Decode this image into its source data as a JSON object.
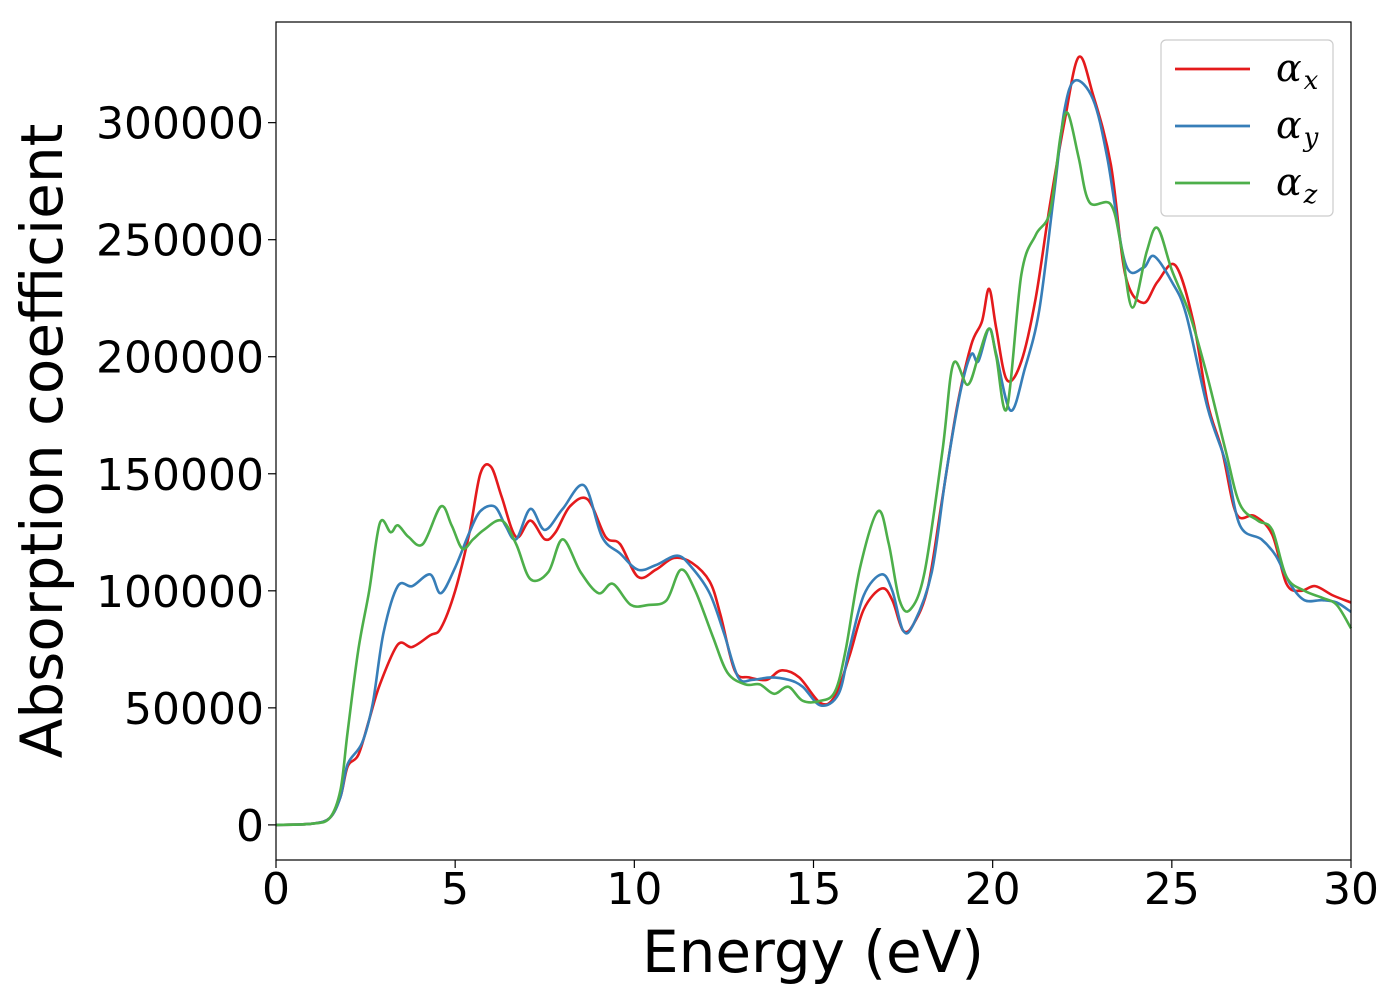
{
  "chart_data": {
    "type": "line",
    "title": "",
    "xlabel": "Energy (eV)",
    "ylabel": "Absorption coefficient",
    "xlim": [
      0,
      30
    ],
    "ylim": [
      -15000,
      343000
    ],
    "xticks": [
      "0",
      "5",
      "10",
      "15",
      "20",
      "25",
      "30"
    ],
    "yticks": [
      "0",
      "50000",
      "100000",
      "150000",
      "200000",
      "250000",
      "300000"
    ],
    "grid": false,
    "legend_position": "top-right",
    "series": [
      {
        "name": "α_x",
        "label_main": "α",
        "label_sub": "x",
        "color": "#e41a1c",
        "points": [
          [
            0,
            0
          ],
          [
            1,
            500
          ],
          [
            1.5,
            3000
          ],
          [
            1.8,
            12000
          ],
          [
            2,
            25000
          ],
          [
            2.3,
            30000
          ],
          [
            2.6,
            45000
          ],
          [
            2.9,
            60000
          ],
          [
            3.4,
            77000
          ],
          [
            3.8,
            76000
          ],
          [
            4.3,
            81000
          ],
          [
            4.6,
            84000
          ],
          [
            5,
            100000
          ],
          [
            5.4,
            125000
          ],
          [
            5.7,
            150000
          ],
          [
            6,
            153000
          ],
          [
            6.3,
            140000
          ],
          [
            6.7,
            123000
          ],
          [
            7.1,
            130000
          ],
          [
            7.5,
            122000
          ],
          [
            7.8,
            125000
          ],
          [
            8.2,
            136000
          ],
          [
            8.7,
            139000
          ],
          [
            9.2,
            123000
          ],
          [
            9.6,
            120000
          ],
          [
            10.1,
            106000
          ],
          [
            10.6,
            109000
          ],
          [
            11.1,
            114000
          ],
          [
            11.6,
            112000
          ],
          [
            12.1,
            104000
          ],
          [
            12.4,
            90000
          ],
          [
            12.8,
            66000
          ],
          [
            13.2,
            63000
          ],
          [
            13.7,
            62000
          ],
          [
            14.1,
            66000
          ],
          [
            14.6,
            63000
          ],
          [
            15.2,
            52000
          ],
          [
            15.6,
            55000
          ],
          [
            16,
            72000
          ],
          [
            16.4,
            92000
          ],
          [
            16.9,
            101000
          ],
          [
            17.2,
            96000
          ],
          [
            17.5,
            83000
          ],
          [
            17.8,
            86000
          ],
          [
            18.2,
            102000
          ],
          [
            18.6,
            140000
          ],
          [
            19,
            178000
          ],
          [
            19.4,
            205000
          ],
          [
            19.7,
            215000
          ],
          [
            19.9,
            229000
          ],
          [
            20.1,
            212000
          ],
          [
            20.4,
            190000
          ],
          [
            20.8,
            198000
          ],
          [
            21.2,
            225000
          ],
          [
            21.6,
            265000
          ],
          [
            22,
            300000
          ],
          [
            22.4,
            328000
          ],
          [
            22.8,
            312000
          ],
          [
            23.3,
            282000
          ],
          [
            23.7,
            235000
          ],
          [
            24.2,
            223000
          ],
          [
            24.6,
            232000
          ],
          [
            25.1,
            239000
          ],
          [
            25.6,
            215000
          ],
          [
            26,
            180000
          ],
          [
            26.4,
            160000
          ],
          [
            26.8,
            133000
          ],
          [
            27.3,
            132000
          ],
          [
            27.8,
            124000
          ],
          [
            28.2,
            103000
          ],
          [
            28.6,
            100000
          ],
          [
            29,
            102000
          ],
          [
            29.5,
            98000
          ],
          [
            30,
            95000
          ]
        ]
      },
      {
        "name": "α_y",
        "label_main": "α",
        "label_sub": "y",
        "color": "#377eb8",
        "points": [
          [
            0,
            0
          ],
          [
            1,
            500
          ],
          [
            1.5,
            3000
          ],
          [
            1.8,
            12000
          ],
          [
            2,
            26000
          ],
          [
            2.4,
            35000
          ],
          [
            2.7,
            52000
          ],
          [
            3.0,
            82000
          ],
          [
            3.4,
            102000
          ],
          [
            3.8,
            102000
          ],
          [
            4.3,
            107000
          ],
          [
            4.6,
            99000
          ],
          [
            5,
            110000
          ],
          [
            5.4,
            125000
          ],
          [
            5.7,
            134000
          ],
          [
            6.1,
            136000
          ],
          [
            6.4,
            128000
          ],
          [
            6.7,
            122000
          ],
          [
            7.1,
            135000
          ],
          [
            7.5,
            126000
          ],
          [
            8,
            135000
          ],
          [
            8.6,
            145000
          ],
          [
            9.1,
            123000
          ],
          [
            9.6,
            116000
          ],
          [
            10.1,
            109000
          ],
          [
            10.6,
            111000
          ],
          [
            11.2,
            115000
          ],
          [
            11.6,
            110000
          ],
          [
            12.1,
            99000
          ],
          [
            12.5,
            82000
          ],
          [
            12.9,
            63000
          ],
          [
            13.3,
            62000
          ],
          [
            13.8,
            63000
          ],
          [
            14.3,
            62000
          ],
          [
            14.7,
            59000
          ],
          [
            15.2,
            51000
          ],
          [
            15.7,
            56000
          ],
          [
            16,
            75000
          ],
          [
            16.4,
            98000
          ],
          [
            16.9,
            107000
          ],
          [
            17.2,
            100000
          ],
          [
            17.5,
            83000
          ],
          [
            17.8,
            86000
          ],
          [
            18.3,
            108000
          ],
          [
            18.7,
            150000
          ],
          [
            19.1,
            185000
          ],
          [
            19.4,
            201000
          ],
          [
            19.6,
            198000
          ],
          [
            19.9,
            212000
          ],
          [
            20.1,
            201000
          ],
          [
            20.5,
            177000
          ],
          [
            20.9,
            195000
          ],
          [
            21.3,
            220000
          ],
          [
            21.7,
            268000
          ],
          [
            22,
            305000
          ],
          [
            22.3,
            318000
          ],
          [
            22.8,
            310000
          ],
          [
            23.2,
            285000
          ],
          [
            23.7,
            240000
          ],
          [
            24.2,
            238000
          ],
          [
            24.5,
            243000
          ],
          [
            25,
            232000
          ],
          [
            25.4,
            218000
          ],
          [
            26,
            178000
          ],
          [
            26.5,
            155000
          ],
          [
            26.9,
            128000
          ],
          [
            27.5,
            122000
          ],
          [
            27.9,
            115000
          ],
          [
            28.3,
            103000
          ],
          [
            28.7,
            96000
          ],
          [
            29.2,
            96000
          ],
          [
            29.6,
            95000
          ],
          [
            30,
            91000
          ]
        ]
      },
      {
        "name": "α_z",
        "label_main": "α",
        "label_sub": "z",
        "color": "#4daf4a",
        "points": [
          [
            0,
            0
          ],
          [
            1,
            500
          ],
          [
            1.5,
            3000
          ],
          [
            1.8,
            15000
          ],
          [
            2,
            40000
          ],
          [
            2.3,
            75000
          ],
          [
            2.6,
            100000
          ],
          [
            2.9,
            129000
          ],
          [
            3.2,
            125000
          ],
          [
            3.4,
            128000
          ],
          [
            3.7,
            123000
          ],
          [
            4.1,
            120000
          ],
          [
            4.6,
            136000
          ],
          [
            4.9,
            128000
          ],
          [
            5.2,
            118000
          ],
          [
            5.5,
            122000
          ],
          [
            5.8,
            126000
          ],
          [
            6.3,
            130000
          ],
          [
            6.7,
            120000
          ],
          [
            7.1,
            105000
          ],
          [
            7.6,
            108000
          ],
          [
            8,
            122000
          ],
          [
            8.5,
            108000
          ],
          [
            9,
            99000
          ],
          [
            9.4,
            103000
          ],
          [
            9.9,
            94000
          ],
          [
            10.4,
            94000
          ],
          [
            10.9,
            96000
          ],
          [
            11.3,
            109000
          ],
          [
            11.7,
            100000
          ],
          [
            12.2,
            80000
          ],
          [
            12.6,
            65000
          ],
          [
            13.1,
            60000
          ],
          [
            13.5,
            60000
          ],
          [
            13.9,
            56000
          ],
          [
            14.3,
            59000
          ],
          [
            14.7,
            53000
          ],
          [
            15.2,
            53000
          ],
          [
            15.6,
            57000
          ],
          [
            15.9,
            75000
          ],
          [
            16.3,
            110000
          ],
          [
            16.8,
            134000
          ],
          [
            17.1,
            120000
          ],
          [
            17.4,
            96000
          ],
          [
            17.7,
            92000
          ],
          [
            18.1,
            108000
          ],
          [
            18.6,
            160000
          ],
          [
            18.9,
            197000
          ],
          [
            19.3,
            188000
          ],
          [
            19.6,
            200000
          ],
          [
            19.9,
            212000
          ],
          [
            20.1,
            200000
          ],
          [
            20.4,
            178000
          ],
          [
            20.8,
            235000
          ],
          [
            21.2,
            252000
          ],
          [
            21.6,
            262000
          ],
          [
            21.9,
            295000
          ],
          [
            22.1,
            304000
          ],
          [
            22.4,
            285000
          ],
          [
            22.7,
            266000
          ],
          [
            23.3,
            265000
          ],
          [
            23.6,
            246000
          ],
          [
            23.9,
            221000
          ],
          [
            24.3,
            245000
          ],
          [
            24.6,
            255000
          ],
          [
            25,
            237000
          ],
          [
            25.5,
            218000
          ],
          [
            26,
            191000
          ],
          [
            26.5,
            160000
          ],
          [
            26.9,
            137000
          ],
          [
            27.4,
            130000
          ],
          [
            27.8,
            126000
          ],
          [
            28.2,
            106000
          ],
          [
            28.7,
            100000
          ],
          [
            29.2,
            97000
          ],
          [
            29.6,
            94000
          ],
          [
            30,
            84000
          ]
        ]
      }
    ]
  }
}
